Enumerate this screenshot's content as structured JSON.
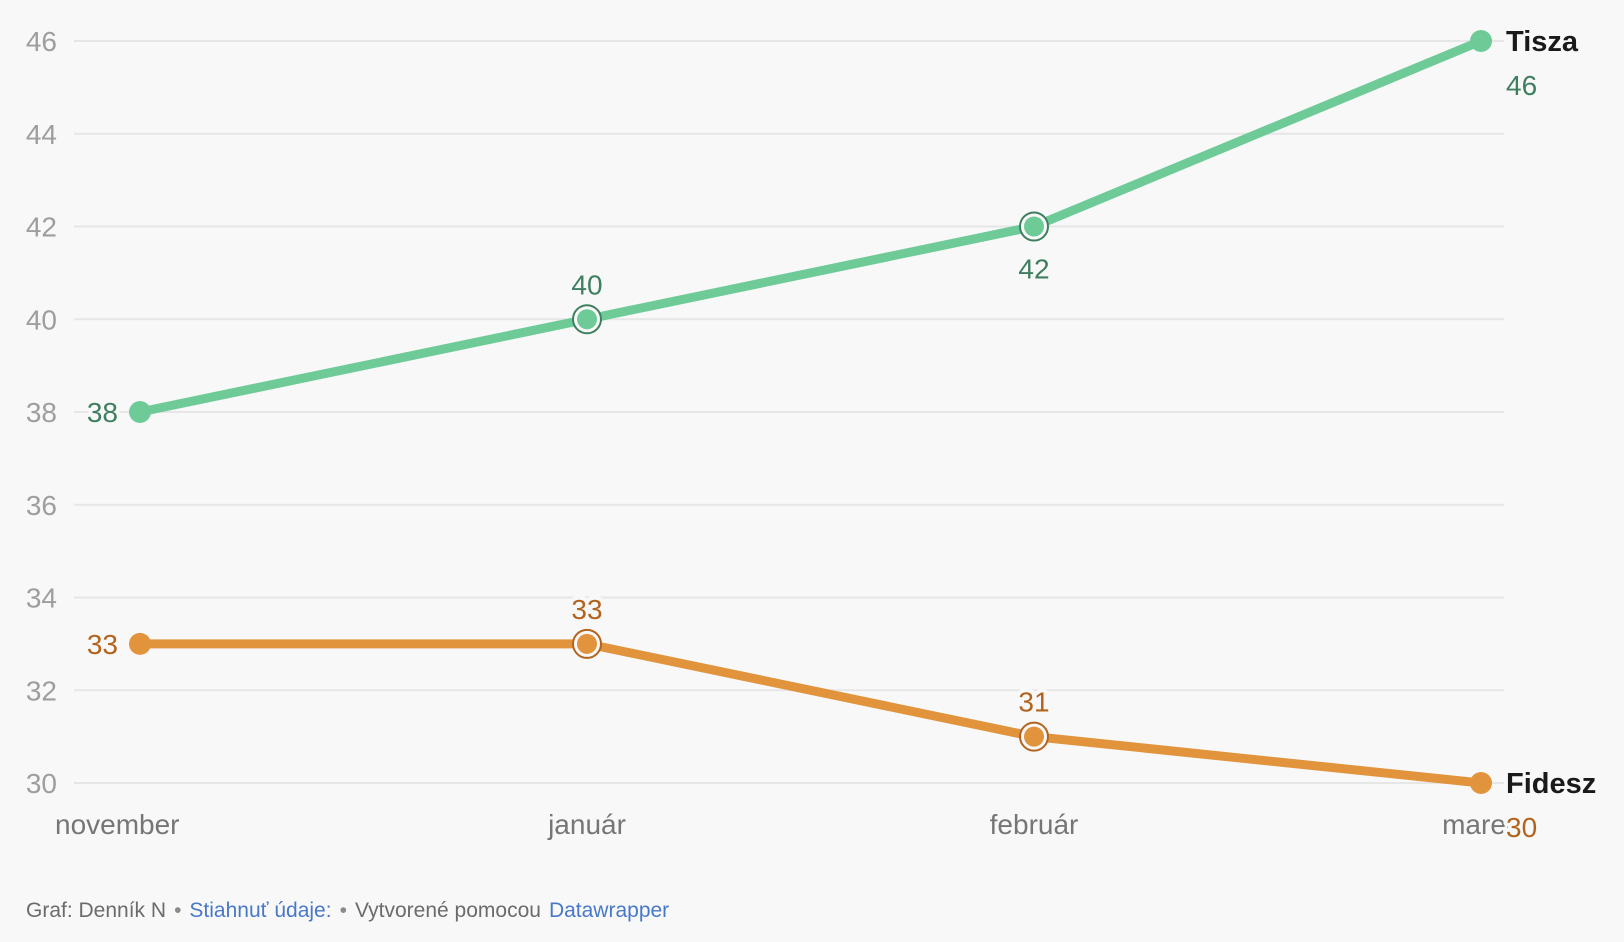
{
  "chart_data": {
    "type": "line",
    "categories": [
      "november",
      "január",
      "február",
      "marec"
    ],
    "series": [
      {
        "name": "Tisza",
        "values": [
          38,
          40,
          42,
          46
        ],
        "color": "#6ecb97",
        "label_color": "#3f7f5f",
        "ring_points": [
          1,
          2
        ],
        "value_label_positions": [
          "left",
          "above",
          "below",
          "end"
        ]
      },
      {
        "name": "Fidesz",
        "values": [
          33,
          33,
          31,
          30
        ],
        "color": "#e2943d",
        "label_color": "#b2641f",
        "ring_points": [
          1,
          2
        ],
        "value_label_positions": [
          "left",
          "above",
          "above",
          "end"
        ]
      }
    ],
    "title": "",
    "xlabel": "",
    "ylabel": "",
    "ylim": [
      30,
      46
    ],
    "yticks": [
      30,
      32,
      34,
      36,
      38,
      40,
      42,
      44,
      46
    ],
    "grid": true,
    "legend_position": "end-of-line"
  },
  "footer": {
    "attribution": "Graf: Denník N",
    "separator": "•",
    "download_link_label": "Stiahnuť údaje:",
    "created_with_label": "Vytvorené pomocou",
    "tool_link_label": "Datawrapper"
  },
  "colors": {
    "background": "#f8f8f8",
    "gridline": "#e6e6e6",
    "y_tick_text": "#9e9e9e",
    "x_label_text": "#767676",
    "series_name_text": "#1a1a1a",
    "footer_text": "#6b6b6b",
    "footer_link": "#4878c8"
  }
}
